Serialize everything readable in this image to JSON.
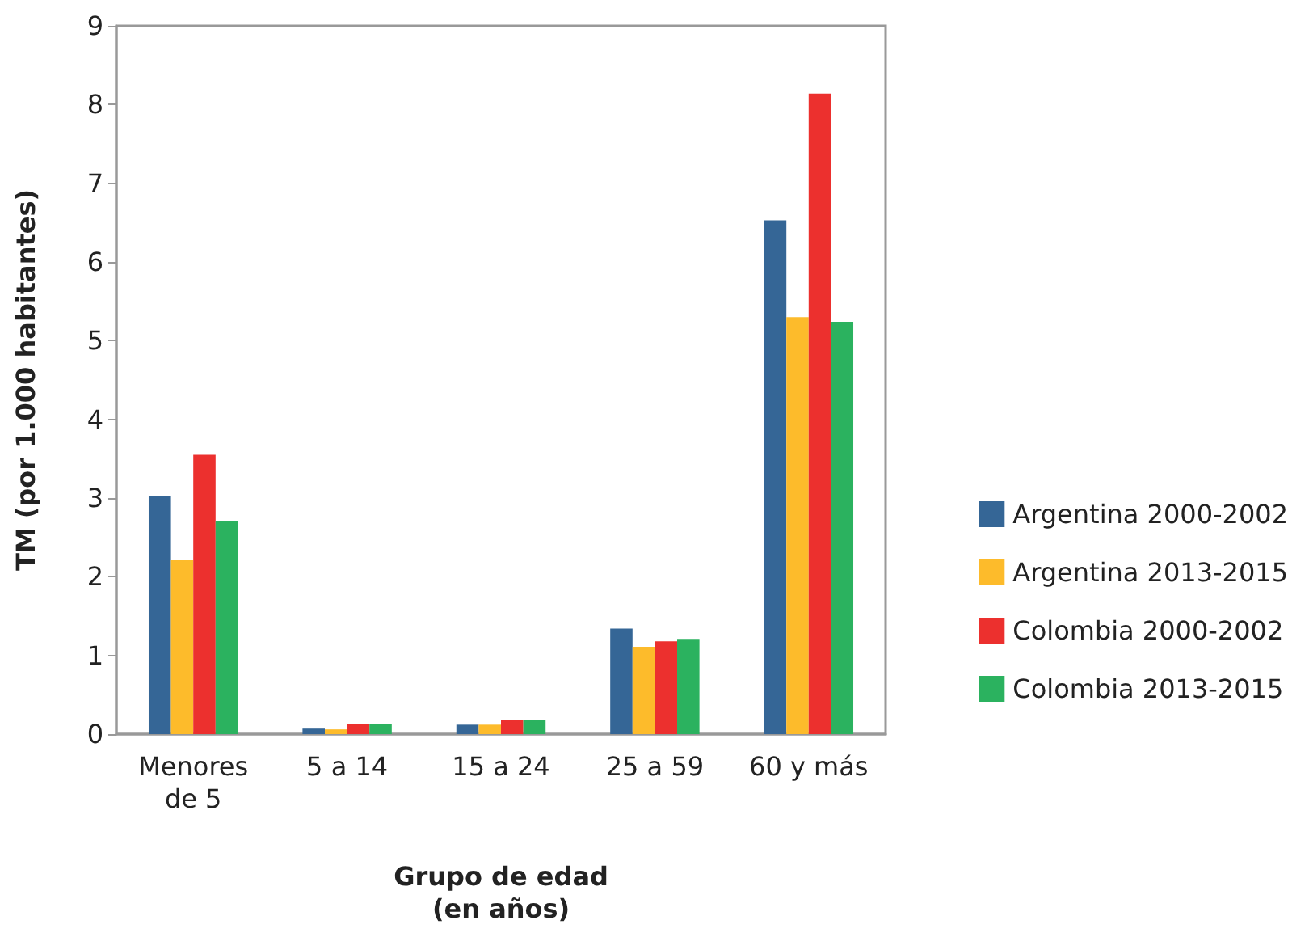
{
  "chart_data": {
    "type": "bar",
    "xlabel": "Grupo de edad\n(en años)",
    "ylabel": "TM (por 1.000 habitantes)",
    "categories": [
      "Menores\nde 5",
      "5 a 14",
      "15 a 24",
      "25 a 59",
      "60 y más"
    ],
    "series": [
      {
        "name": "Argentina 2000-2002",
        "color": "#356696",
        "values": [
          3.03,
          0.07,
          0.12,
          1.34,
          6.53
        ]
      },
      {
        "name": "Argentina 2013-2015",
        "color": "#fdbb2b",
        "values": [
          2.21,
          0.06,
          0.12,
          1.11,
          5.3
        ]
      },
      {
        "name": "Colombia 2000-2002",
        "color": "#ec302e",
        "values": [
          3.55,
          0.13,
          0.18,
          1.18,
          8.14
        ]
      },
      {
        "name": "Colombia 2013-2015",
        "color": "#2bb25f",
        "values": [
          2.71,
          0.13,
          0.18,
          1.21,
          5.24
        ]
      }
    ],
    "ylim": [
      0,
      9
    ],
    "yticks": [
      0,
      1,
      2,
      3,
      4,
      5,
      6,
      7,
      8,
      9
    ],
    "grid": false,
    "legend": "right"
  }
}
